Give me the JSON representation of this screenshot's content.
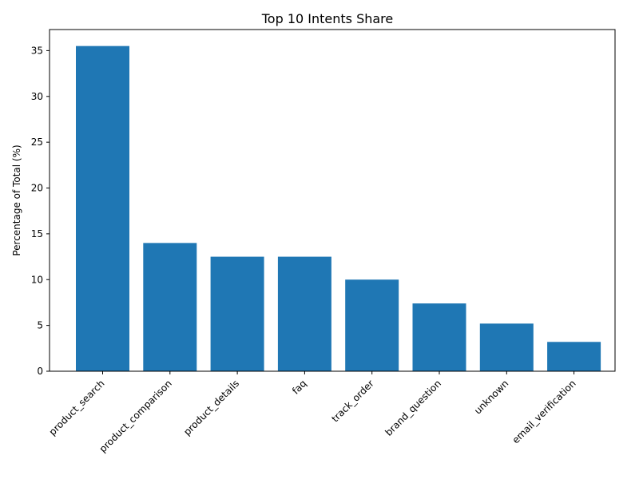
{
  "chart_data": {
    "type": "bar",
    "title": "Top 10 Intents Share",
    "xlabel": "",
    "ylabel": "Percentage of Total (%)",
    "categories": [
      "product_search",
      "product_comparison",
      "product_details",
      "faq",
      "track_order",
      "brand_question",
      "unknown",
      "email_verification"
    ],
    "values": [
      35.5,
      14.0,
      12.5,
      12.5,
      10.0,
      7.4,
      5.2,
      3.2
    ],
    "ylim": [
      0,
      37.3
    ],
    "yticks": [
      0,
      5,
      10,
      15,
      20,
      25,
      30,
      35
    ],
    "grid": false,
    "bar_color": "#1f77b4"
  }
}
